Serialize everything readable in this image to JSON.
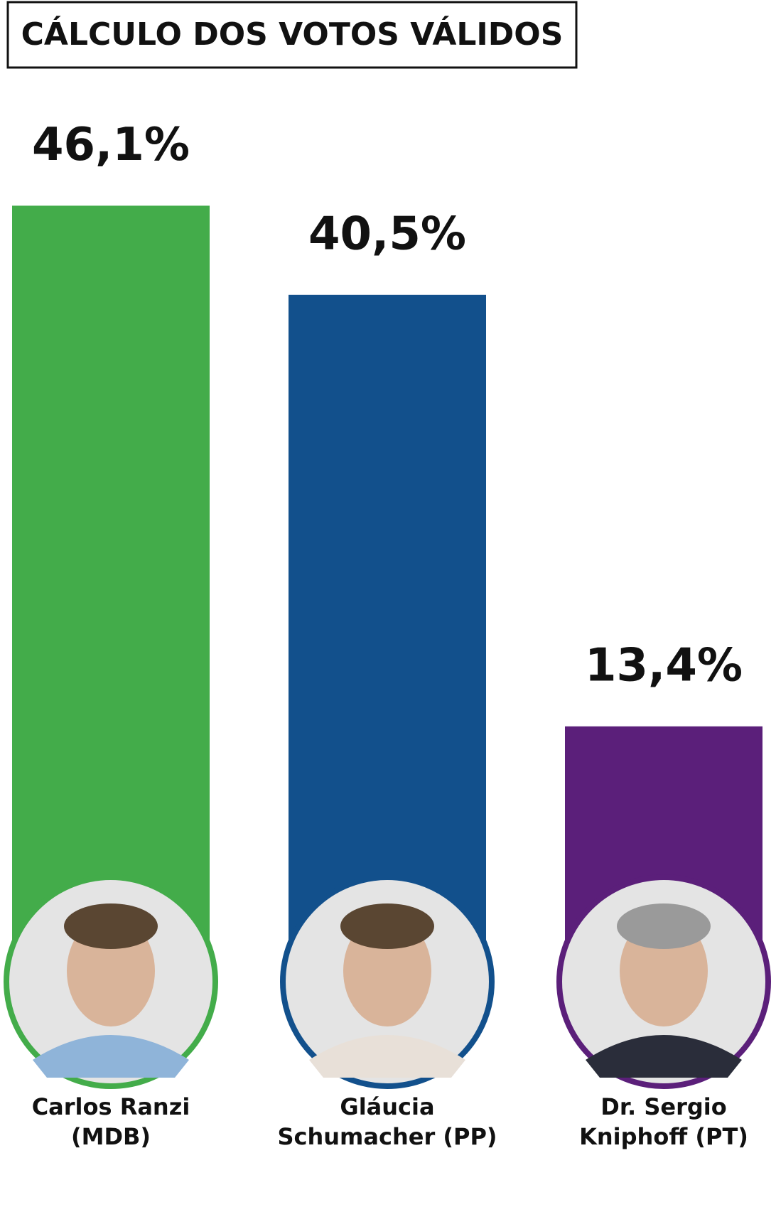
{
  "chart_data": {
    "type": "bar",
    "title": "CÁLCULO DOS VOTOS VÁLIDOS",
    "categories": [
      "Carlos Ranzi\n(MDB)",
      "Gláucia\nSchumacher (PP)",
      "Dr. Sergio\nKniphoff (PT)"
    ],
    "values": [
      46.1,
      40.5,
      13.4
    ],
    "value_labels": [
      "46,1%",
      "40,5%",
      "13,4%"
    ],
    "colors": [
      "#43ac4a",
      "#12508c",
      "#5b1f7a"
    ]
  }
}
